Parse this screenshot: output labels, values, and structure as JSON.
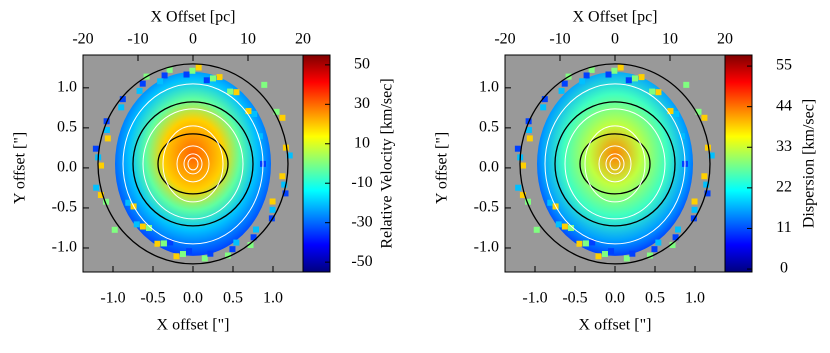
{
  "chart_data": [
    {
      "type": "map",
      "x2label": "X Offset [pc]",
      "x2lim": [
        -20,
        20
      ],
      "x2ticks": [
        -20,
        -10,
        0,
        10,
        20
      ],
      "xlabel": "X offset [\"]",
      "xlim": [
        -1.375,
        1.375
      ],
      "xticks": [
        {
          "value": -1,
          "label": "-1.0"
        },
        -0.5,
        {
          "value": 0,
          "label": "0.0"
        },
        0.5,
        {
          "value": 1,
          "label": "1.0"
        }
      ],
      "ylabel": "Y offset [\"]",
      "ylim": [
        -1.3,
        1.41
      ],
      "yticks": [
        {
          "value": 1,
          "label": "1.0"
        },
        0.5,
        {
          "value": 0,
          "label": "0.0"
        },
        -0.5,
        {
          "value": -1,
          "label": "-1.0"
        }
      ],
      "colorbar": {
        "label": "Relative Velocity [km/sec]",
        "lim": [
          -55,
          55
        ],
        "ticks": [
          50,
          30,
          10,
          -10,
          -30,
          -50
        ],
        "colors": [
          "#00007f",
          "#0000ff",
          "#0080ff",
          "#00ffff",
          "#80ff80",
          "#ffff00",
          "#ff8000",
          "#ff0000",
          "#7f0000"
        ]
      }
    },
    {
      "type": "map",
      "x2label": "X Offset [pc]",
      "x2lim": [
        -20,
        20
      ],
      "x2ticks": [
        -20,
        -10,
        0,
        10,
        20
      ],
      "xlabel": "X offset [\"]",
      "xlim": [
        -1.375,
        1.375
      ],
      "xticks": [
        {
          "value": -1,
          "label": "-1.0"
        },
        -0.5,
        {
          "value": 0,
          "label": "0.0"
        },
        0.5,
        {
          "value": 1,
          "label": "1.0"
        }
      ],
      "ylabel": "Y offset [\"]",
      "ylim": [
        -1.3,
        1.41
      ],
      "yticks": [
        {
          "value": 1,
          "label": "1.0"
        },
        0.5,
        {
          "value": 0,
          "label": "0.0"
        },
        -0.5,
        {
          "value": -1,
          "label": "-1.0"
        }
      ],
      "colorbar": {
        "label": "Dispersion [km/sec]",
        "lim": [
          -0.8,
          58
        ],
        "ticks": [
          55,
          44,
          33,
          22,
          11,
          0
        ],
        "colors": [
          "#00007f",
          "#0000ff",
          "#0080ff",
          "#00ffff",
          "#80ff80",
          "#ffff00",
          "#ff8000",
          "#ff0000",
          "#7f0000"
        ]
      }
    }
  ]
}
